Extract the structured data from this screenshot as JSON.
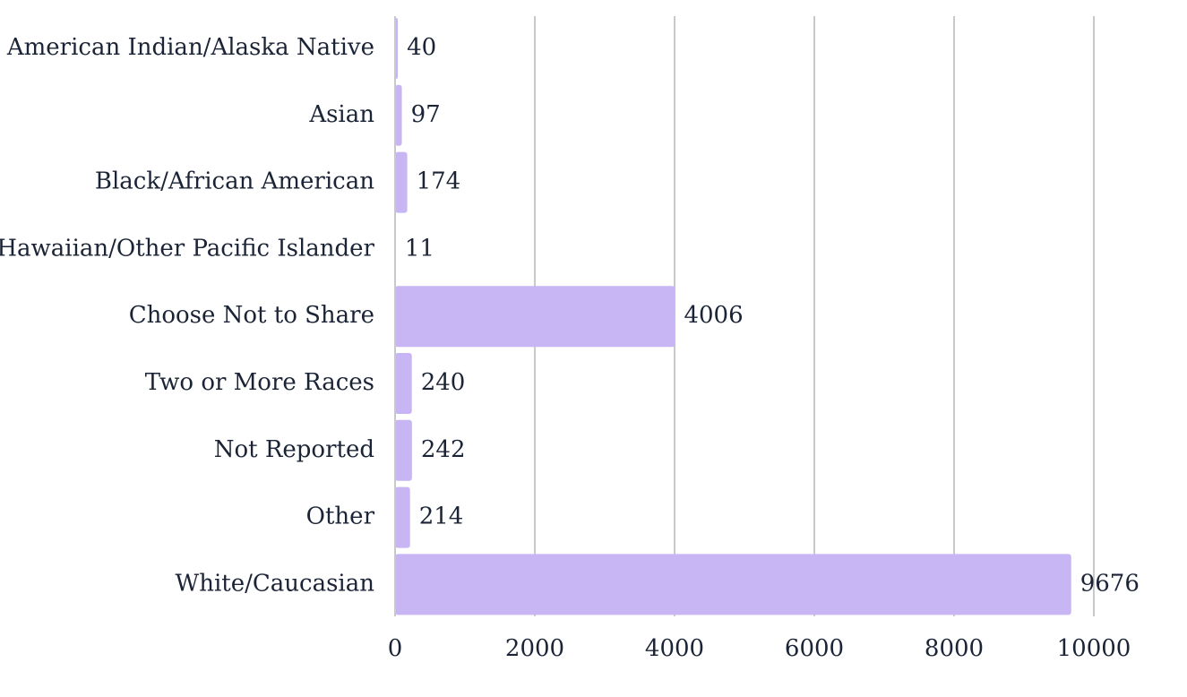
{
  "chart_data": {
    "type": "bar",
    "orientation": "horizontal",
    "categories": [
      "American Indian/Alaska Native",
      "Asian",
      "Black/African American",
      "Hawaiian/Other Pacific Islander",
      "Choose Not to Share",
      "Two or More Races",
      "Not Reported",
      "Other",
      "White/Caucasian"
    ],
    "values": [
      40,
      97,
      174,
      11,
      4006,
      240,
      242,
      214,
      9676
    ],
    "xlim": [
      0,
      10000
    ],
    "xticks": [
      0,
      2000,
      4000,
      6000,
      8000,
      10000
    ],
    "tick_labels": [
      "0",
      "2000",
      "4000",
      "6000",
      "8000",
      "10000"
    ],
    "title": "",
    "xlabel": "",
    "ylabel": "",
    "grid": "vertical",
    "legend": "none",
    "data_labels": true,
    "bar_color": "#c8b5f3",
    "text_color": "#1b2436",
    "grid_color": "#c9c9c9"
  }
}
